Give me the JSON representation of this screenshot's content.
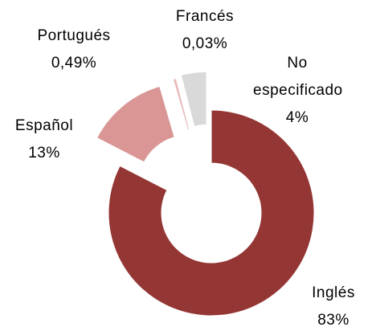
{
  "chart_data": {
    "type": "donut",
    "categories": [
      "Inglés",
      "Español",
      "Portugués",
      "Francés",
      "No especificado"
    ],
    "values": [
      83,
      13,
      0.49,
      0.03,
      4
    ],
    "value_labels": [
      "83%",
      "13%",
      "0,49%",
      "0,03%",
      "4%"
    ],
    "colors": [
      "#943634",
      "#d99694",
      "#e6b9b8",
      "#f2dcdb",
      "#d9d9d9"
    ]
  }
}
